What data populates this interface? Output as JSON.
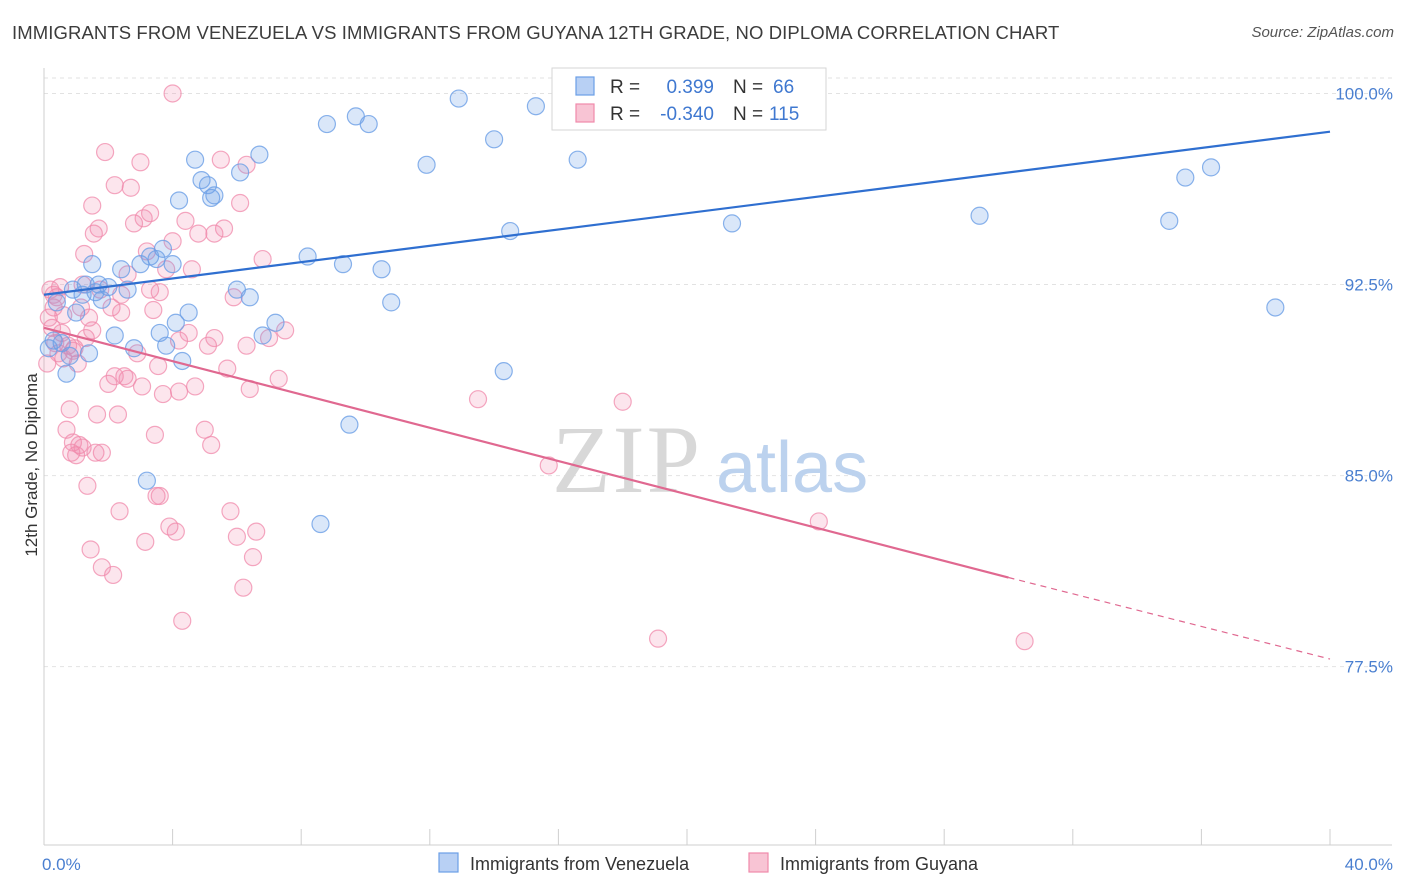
{
  "title": "IMMIGRANTS FROM VENEZUELA VS IMMIGRANTS FROM GUYANA 12TH GRADE, NO DIPLOMA CORRELATION CHART",
  "source": "Source: ZipAtlas.com",
  "watermark": {
    "zip": "ZIP",
    "atlas": "atlas"
  },
  "colors": {
    "venezuela": "#6b9fe6",
    "venezuela_line": "#2f6fd0",
    "guyana": "#f08aab",
    "guyana_line": "#e06890",
    "tick_text": "#4a7fd0",
    "grid": "#e2e2e2"
  },
  "legend": {
    "rows": [
      {
        "r_label": "R =",
        "r_value": "0.399",
        "n_label": "N =",
        "n_value": "66"
      },
      {
        "r_label": "R =",
        "r_value": "-0.340",
        "n_label": "N =",
        "n_value": "115"
      }
    ]
  },
  "chart_data": {
    "type": "scatter",
    "title": "IMMIGRANTS FROM VENEZUELA VS IMMIGRANTS FROM GUYANA 12TH GRADE, NO DIPLOMA CORRELATION CHART",
    "xlabel": "",
    "ylabel": "12th Grade, No Diploma",
    "xlim": [
      0,
      40
    ],
    "ylim": [
      70.5,
      101
    ],
    "x_tick_labels": [
      "0.0%",
      "40.0%"
    ],
    "y_ticks": [
      77.5,
      85.0,
      92.5,
      100.0
    ],
    "y_tick_labels": [
      "77.5%",
      "85.0%",
      "92.5%",
      "100.0%"
    ],
    "grid": "horizontal dashed",
    "legend_position": "bottom",
    "series": [
      {
        "name": "Immigrants from Venezuela",
        "R": 0.399,
        "N": 66,
        "trend": {
          "x": [
            0,
            40
          ],
          "y": [
            92.1,
            98.5
          ]
        },
        "points": [
          [
            0.15,
            90.0
          ],
          [
            0.3,
            90.3
          ],
          [
            0.4,
            91.8
          ],
          [
            0.55,
            90.2
          ],
          [
            0.7,
            89.0
          ],
          [
            0.8,
            89.7
          ],
          [
            0.9,
            92.3
          ],
          [
            1.0,
            91.4
          ],
          [
            1.2,
            92.1
          ],
          [
            1.3,
            92.5
          ],
          [
            1.4,
            89.8
          ],
          [
            1.5,
            93.3
          ],
          [
            1.6,
            92.2
          ],
          [
            1.7,
            92.5
          ],
          [
            1.8,
            91.9
          ],
          [
            2.0,
            92.4
          ],
          [
            2.2,
            90.5
          ],
          [
            2.4,
            93.1
          ],
          [
            2.6,
            92.3
          ],
          [
            2.8,
            90.0
          ],
          [
            3.0,
            93.3
          ],
          [
            3.2,
            84.8
          ],
          [
            3.3,
            93.6
          ],
          [
            3.5,
            93.5
          ],
          [
            3.6,
            90.6
          ],
          [
            3.7,
            93.9
          ],
          [
            3.8,
            90.1
          ],
          [
            4.0,
            93.3
          ],
          [
            4.1,
            91.0
          ],
          [
            4.2,
            95.8
          ],
          [
            4.3,
            89.5
          ],
          [
            4.5,
            91.4
          ],
          [
            4.7,
            97.4
          ],
          [
            4.9,
            96.6
          ],
          [
            5.1,
            96.4
          ],
          [
            5.2,
            95.9
          ],
          [
            5.3,
            96.0
          ],
          [
            6.0,
            92.3
          ],
          [
            6.1,
            96.9
          ],
          [
            6.4,
            92.0
          ],
          [
            6.7,
            97.6
          ],
          [
            6.8,
            90.5
          ],
          [
            7.2,
            91.0
          ],
          [
            8.2,
            93.6
          ],
          [
            8.6,
            83.1
          ],
          [
            8.8,
            98.8
          ],
          [
            9.3,
            93.3
          ],
          [
            9.5,
            87.0
          ],
          [
            9.7,
            99.1
          ],
          [
            10.1,
            98.8
          ],
          [
            10.5,
            93.1
          ],
          [
            10.8,
            91.8
          ],
          [
            11.9,
            97.2
          ],
          [
            12.9,
            99.8
          ],
          [
            14.0,
            98.2
          ],
          [
            14.3,
            89.1
          ],
          [
            14.5,
            94.6
          ],
          [
            15.3,
            99.5
          ],
          [
            16.6,
            97.4
          ],
          [
            17.2,
            99.8
          ],
          [
            21.4,
            94.9
          ],
          [
            29.1,
            95.2
          ],
          [
            35.0,
            95.0
          ],
          [
            35.5,
            96.7
          ],
          [
            36.3,
            97.1
          ],
          [
            38.3,
            91.6
          ]
        ]
      },
      {
        "name": "Immigrants from Guyana",
        "R": -0.34,
        "N": 115,
        "trend": {
          "x": [
            0,
            30
          ],
          "y": [
            90.8,
            81.0
          ]
        },
        "trend_dashed": {
          "x": [
            30,
            40
          ],
          "y": [
            81.0,
            77.8
          ]
        },
        "points": [
          [
            0.1,
            89.4
          ],
          [
            0.15,
            91.2
          ],
          [
            0.2,
            92.3
          ],
          [
            0.25,
            90.8
          ],
          [
            0.3,
            91.6
          ],
          [
            0.35,
            90.2
          ],
          [
            0.4,
            92.0
          ],
          [
            0.45,
            89.8
          ],
          [
            0.5,
            92.4
          ],
          [
            0.55,
            90.6
          ],
          [
            0.6,
            89.6
          ],
          [
            0.7,
            86.8
          ],
          [
            0.75,
            90.1
          ],
          [
            0.8,
            87.6
          ],
          [
            0.85,
            85.9
          ],
          [
            0.9,
            86.3
          ],
          [
            0.95,
            90.0
          ],
          [
            1.0,
            85.8
          ],
          [
            1.05,
            89.4
          ],
          [
            1.1,
            86.2
          ],
          [
            1.15,
            91.6
          ],
          [
            1.2,
            92.5
          ],
          [
            1.25,
            93.7
          ],
          [
            1.3,
            90.4
          ],
          [
            1.35,
            84.6
          ],
          [
            1.4,
            91.2
          ],
          [
            1.45,
            82.1
          ],
          [
            1.5,
            95.6
          ],
          [
            1.55,
            94.5
          ],
          [
            1.6,
            85.9
          ],
          [
            1.65,
            87.4
          ],
          [
            1.7,
            94.7
          ],
          [
            1.75,
            92.3
          ],
          [
            1.8,
            81.4
          ],
          [
            1.9,
            97.7
          ],
          [
            2.0,
            88.6
          ],
          [
            2.1,
            91.6
          ],
          [
            2.15,
            81.1
          ],
          [
            2.2,
            96.4
          ],
          [
            2.3,
            87.4
          ],
          [
            2.35,
            83.6
          ],
          [
            2.4,
            91.4
          ],
          [
            2.5,
            88.9
          ],
          [
            2.6,
            92.9
          ],
          [
            2.7,
            96.3
          ],
          [
            2.8,
            94.9
          ],
          [
            2.9,
            89.8
          ],
          [
            3.0,
            97.3
          ],
          [
            3.05,
            88.5
          ],
          [
            3.1,
            95.1
          ],
          [
            3.15,
            82.4
          ],
          [
            3.2,
            93.8
          ],
          [
            3.3,
            95.3
          ],
          [
            3.4,
            91.5
          ],
          [
            3.45,
            86.6
          ],
          [
            3.5,
            84.2
          ],
          [
            3.55,
            89.3
          ],
          [
            3.6,
            92.2
          ],
          [
            3.7,
            88.2
          ],
          [
            3.8,
            93.1
          ],
          [
            3.9,
            83.0
          ],
          [
            4.0,
            94.2
          ],
          [
            4.1,
            82.8
          ],
          [
            4.2,
            90.3
          ],
          [
            4.3,
            79.3
          ],
          [
            4.4,
            95.0
          ],
          [
            4.5,
            90.6
          ],
          [
            4.6,
            93.1
          ],
          [
            4.7,
            88.5
          ],
          [
            4.8,
            94.5
          ],
          [
            5.0,
            86.8
          ],
          [
            5.1,
            90.1
          ],
          [
            5.2,
            86.2
          ],
          [
            5.3,
            90.4
          ],
          [
            5.5,
            97.4
          ],
          [
            5.6,
            94.7
          ],
          [
            5.7,
            89.2
          ],
          [
            5.8,
            83.6
          ],
          [
            5.9,
            92.0
          ],
          [
            6.0,
            82.6
          ],
          [
            6.1,
            95.7
          ],
          [
            6.2,
            80.6
          ],
          [
            6.3,
            90.1
          ],
          [
            6.4,
            88.4
          ],
          [
            6.5,
            81.8
          ],
          [
            6.6,
            82.8
          ],
          [
            6.8,
            93.5
          ],
          [
            7.0,
            90.4
          ],
          [
            7.3,
            88.8
          ],
          [
            7.5,
            90.7
          ],
          [
            13.5,
            88.0
          ],
          [
            15.7,
            85.4
          ],
          [
            18.0,
            87.9
          ],
          [
            19.1,
            78.6
          ],
          [
            24.1,
            83.2
          ],
          [
            30.5,
            78.5
          ],
          [
            0.3,
            92.1
          ],
          [
            0.6,
            91.3
          ],
          [
            0.9,
            89.9
          ],
          [
            1.2,
            86.1
          ],
          [
            1.5,
            90.7
          ],
          [
            1.8,
            85.9
          ],
          [
            2.2,
            88.9
          ],
          [
            2.6,
            88.8
          ],
          [
            3.3,
            92.3
          ],
          [
            3.6,
            84.2
          ],
          [
            4.2,
            88.3
          ],
          [
            5.3,
            94.5
          ],
          [
            6.3,
            97.2
          ],
          [
            2.4,
            92.1
          ],
          [
            4.0,
            100.0
          ]
        ]
      }
    ]
  },
  "bottom_legend": [
    {
      "label": "Immigrants from Venezuela"
    },
    {
      "label": "Immigrants from Guyana"
    }
  ]
}
